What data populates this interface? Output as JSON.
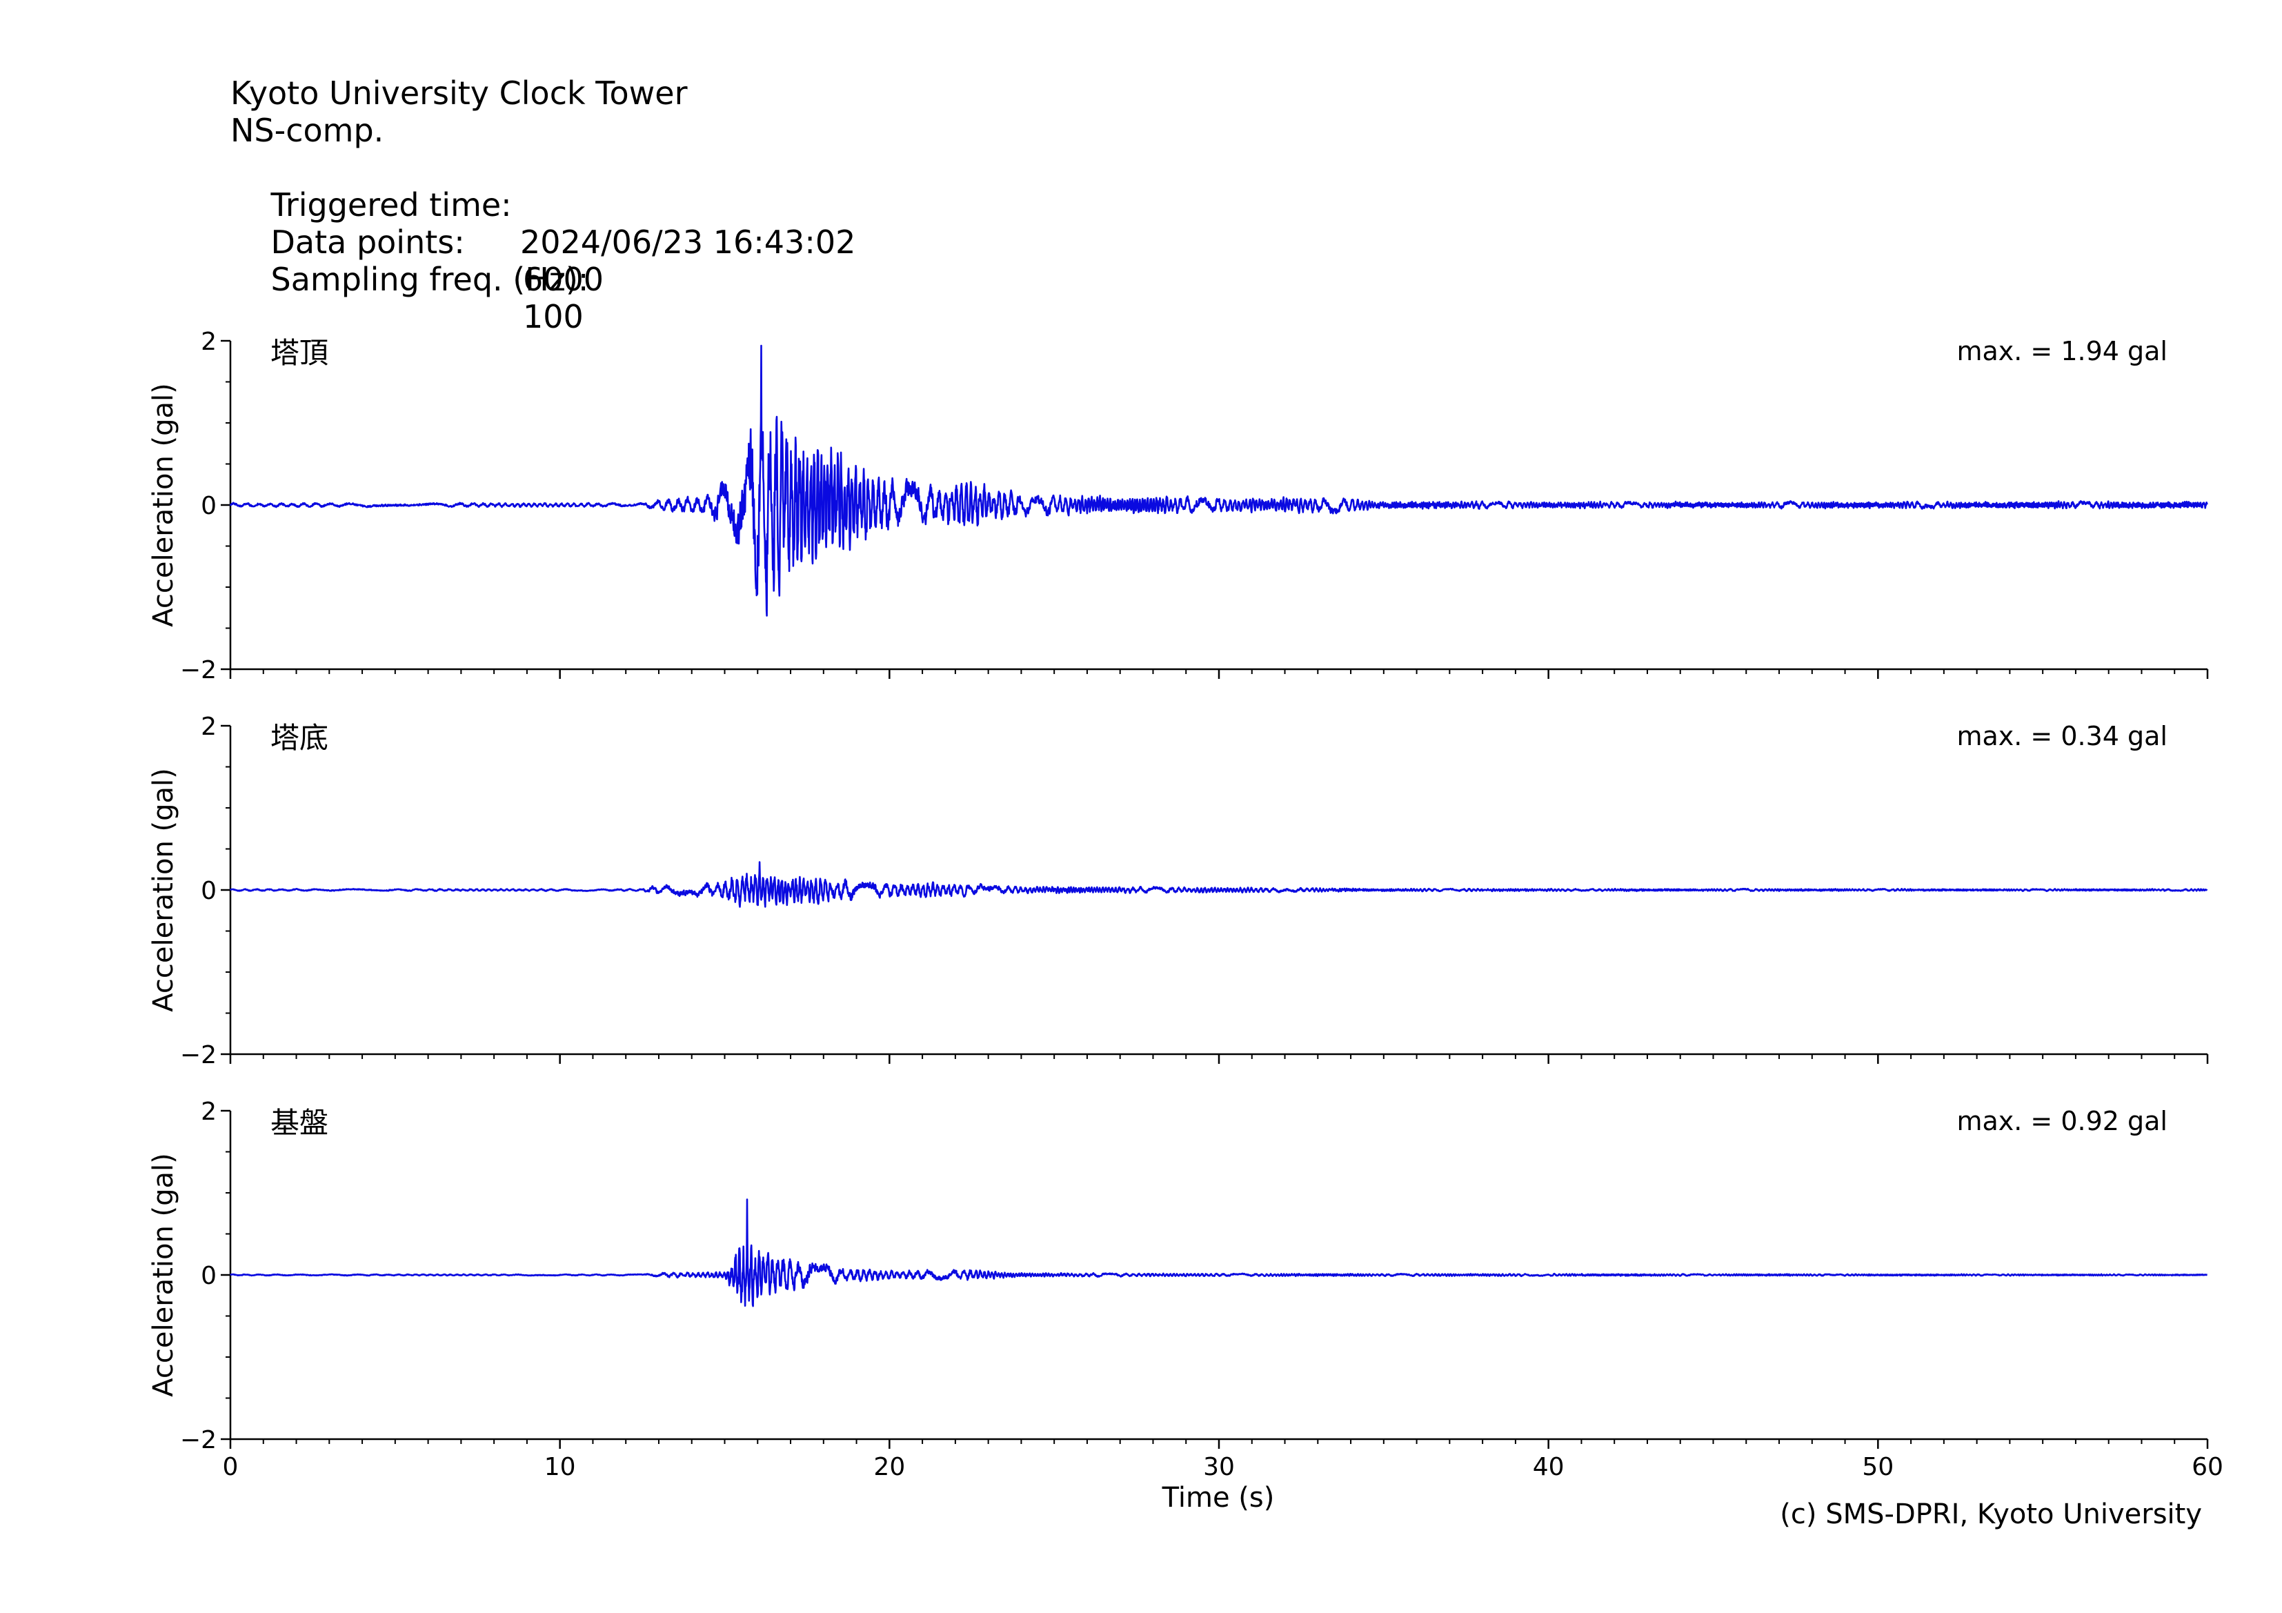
{
  "header": {
    "station": "Kyoto University Clock Tower",
    "component": "NS-comp.",
    "rows": [
      {
        "label": "Triggered time:",
        "value": "2024/06/23 16:43:02"
      },
      {
        "label": "Data points:",
        "value": "6000"
      },
      {
        "label": "Sampling freq. (Hz):",
        "value": "100"
      }
    ]
  },
  "copyright": "(c) SMS-DPRI, Kyoto University",
  "colors": {
    "trace": "#0a0ae0",
    "axis": "#000000"
  },
  "chart_data": {
    "type": "line",
    "xlabel": "Time (s)",
    "xlim": [
      0,
      60
    ],
    "x_ticks": [
      "0",
      "10",
      "20",
      "30",
      "40",
      "50",
      "60"
    ],
    "x_tick_values": [
      0,
      10,
      20,
      30,
      40,
      50,
      60
    ],
    "panels": [
      {
        "name": "塔頂",
        "max_label": "max. = 1.94 gal",
        "ylabel": "Acceleration (gal)",
        "ylim": [
          -2,
          2
        ],
        "y_ticks": [
          "2",
          "0",
          "−2"
        ],
        "y_tick_values": [
          2,
          0,
          -2
        ],
        "peak": 1.94,
        "envelope": [
          [
            0,
            0.03
          ],
          [
            12.5,
            0.03
          ],
          [
            13.0,
            0.08
          ],
          [
            14.5,
            0.15
          ],
          [
            15.2,
            0.55
          ],
          [
            16.2,
            1.6
          ],
          [
            17.5,
            1.0
          ],
          [
            18.6,
            0.9
          ],
          [
            19.5,
            0.45
          ],
          [
            21.0,
            0.3
          ],
          [
            22.5,
            0.35
          ],
          [
            24.0,
            0.16
          ],
          [
            28.0,
            0.13
          ],
          [
            31.0,
            0.11
          ],
          [
            33.5,
            0.12
          ],
          [
            35.0,
            0.06
          ],
          [
            45.0,
            0.05
          ],
          [
            60.0,
            0.06
          ]
        ]
      },
      {
        "name": "塔底",
        "max_label": "max. = 0.34 gal",
        "ylabel": "Acceleration (gal)",
        "ylim": [
          -2,
          2
        ],
        "y_ticks": [
          "2",
          "0",
          "−2"
        ],
        "y_tick_values": [
          2,
          0,
          -2
        ],
        "peak": 0.34,
        "envelope": [
          [
            0,
            0.015
          ],
          [
            12.5,
            0.015
          ],
          [
            12.8,
            0.06
          ],
          [
            14.8,
            0.12
          ],
          [
            15.6,
            0.28
          ],
          [
            17.0,
            0.22
          ],
          [
            18.0,
            0.2
          ],
          [
            19.5,
            0.12
          ],
          [
            22.0,
            0.1
          ],
          [
            24.0,
            0.05
          ],
          [
            30.0,
            0.04
          ],
          [
            35.0,
            0.02
          ],
          [
            60.0,
            0.015
          ]
        ]
      },
      {
        "name": "基盤",
        "max_label": "max. = 0.92 gal",
        "ylabel": "Acceleration (gal)",
        "ylim": [
          -2,
          2
        ],
        "y_ticks": [
          "2",
          "0",
          "−2"
        ],
        "y_tick_values": [
          2,
          0,
          -2
        ],
        "peak": 0.92,
        "envelope": [
          [
            0,
            0.01
          ],
          [
            12.5,
            0.01
          ],
          [
            13.0,
            0.03
          ],
          [
            15.0,
            0.05
          ],
          [
            15.5,
            0.55
          ],
          [
            16.5,
            0.3
          ],
          [
            18.0,
            0.15
          ],
          [
            20.0,
            0.06
          ],
          [
            21.5,
            0.08
          ],
          [
            22.5,
            0.08
          ],
          [
            24.0,
            0.03
          ],
          [
            30.0,
            0.02
          ],
          [
            60.0,
            0.01
          ]
        ]
      }
    ]
  }
}
